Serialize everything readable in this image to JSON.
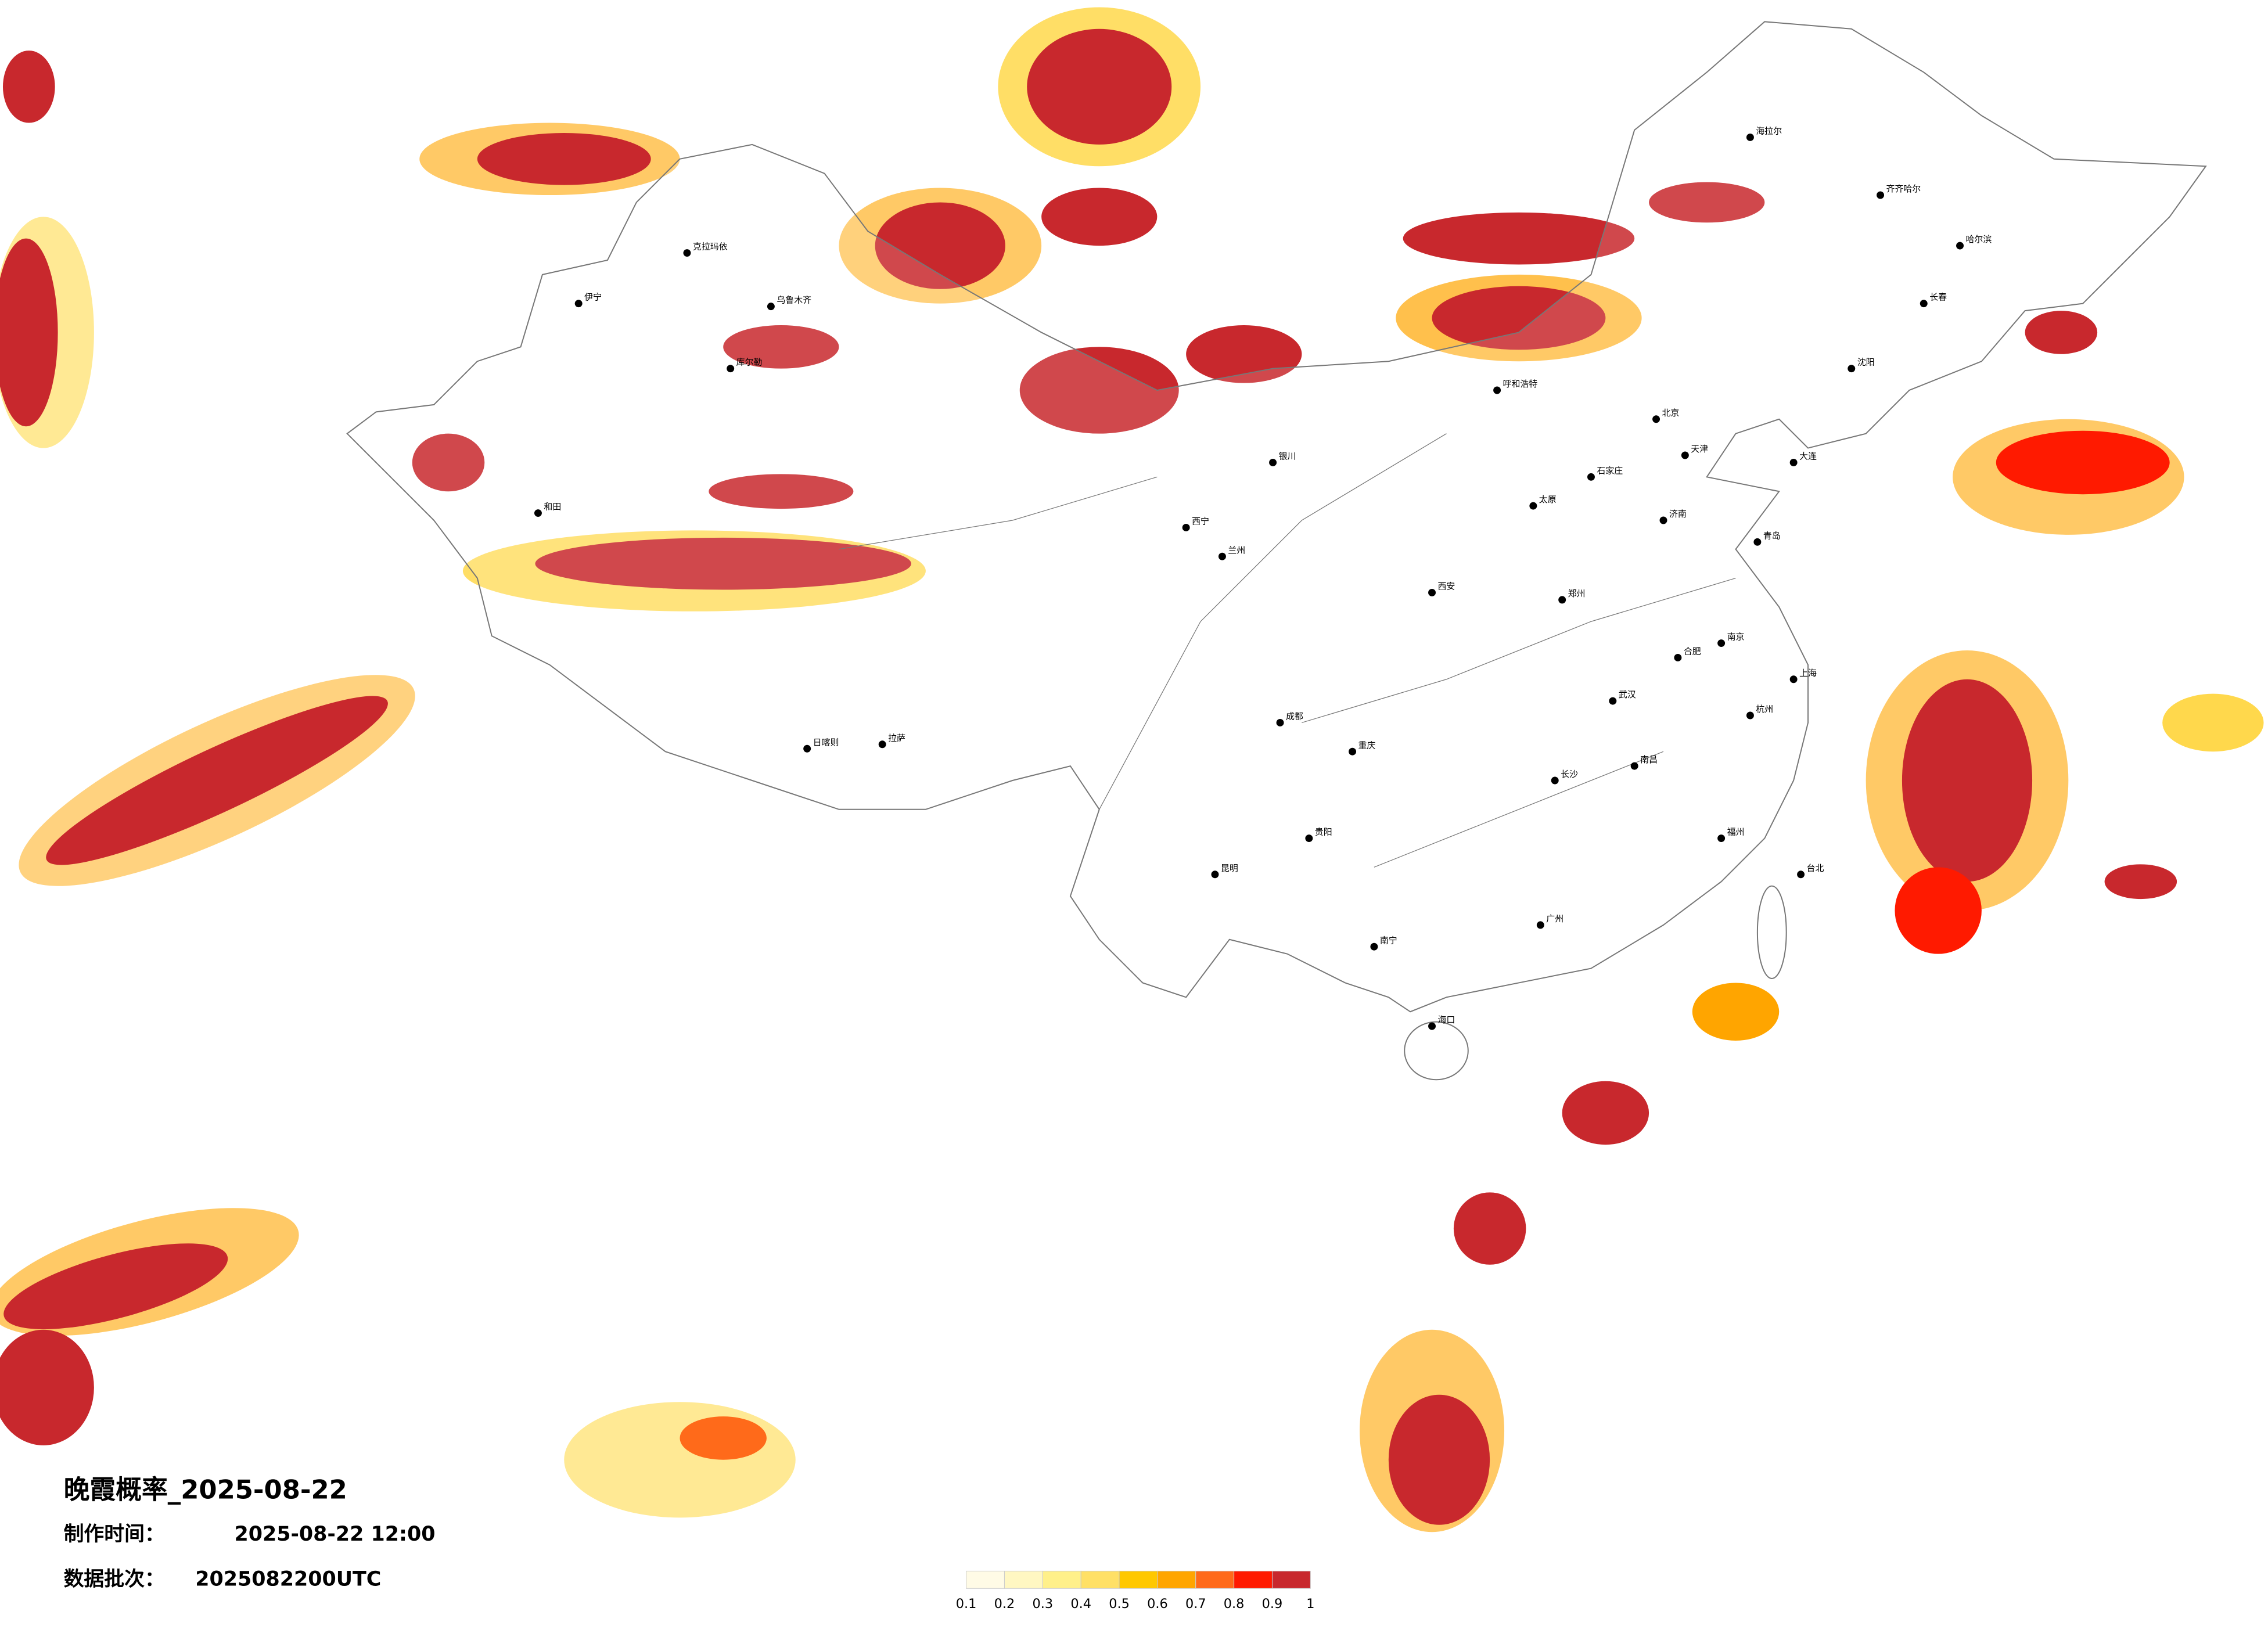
{
  "title": "晚霞概率_2025-08-22",
  "made_time_label": "制作时间：",
  "made_time": "2025-08-22 12:00",
  "batch_label": "数据批次：",
  "batch": "2025082200UTC",
  "legend": {
    "colors": [
      "#fffbe6",
      "#fff7c2",
      "#fff08a",
      "#ffe066",
      "#ffc800",
      "#ffa500",
      "#ff6a1a",
      "#ff1a00",
      "#c8282d"
    ],
    "ticks": [
      0.1,
      0.2,
      0.3,
      0.4,
      0.5,
      0.6,
      0.7,
      0.8,
      0.9,
      1
    ]
  },
  "cities": [
    "克拉玛依",
    "伊宁",
    "乌鲁木齐",
    "库尔勒",
    "和田",
    "日喀则",
    "拉萨",
    "西宁",
    "兰州",
    "银川",
    "呼和浩特",
    "北京",
    "天津",
    "石家庄",
    "太原",
    "济南",
    "郑州",
    "西安",
    "成都",
    "重庆",
    "贵阳",
    "昆明",
    "南宁",
    "广州",
    "长沙",
    "武汉",
    "南昌",
    "合肥",
    "南京",
    "上海",
    "杭州",
    "福州",
    "台北",
    "海口",
    "沈阳",
    "长春",
    "哈尔滨",
    "大连",
    "青岛",
    "齐齐哈尔",
    "海拉尔"
  ]
}
